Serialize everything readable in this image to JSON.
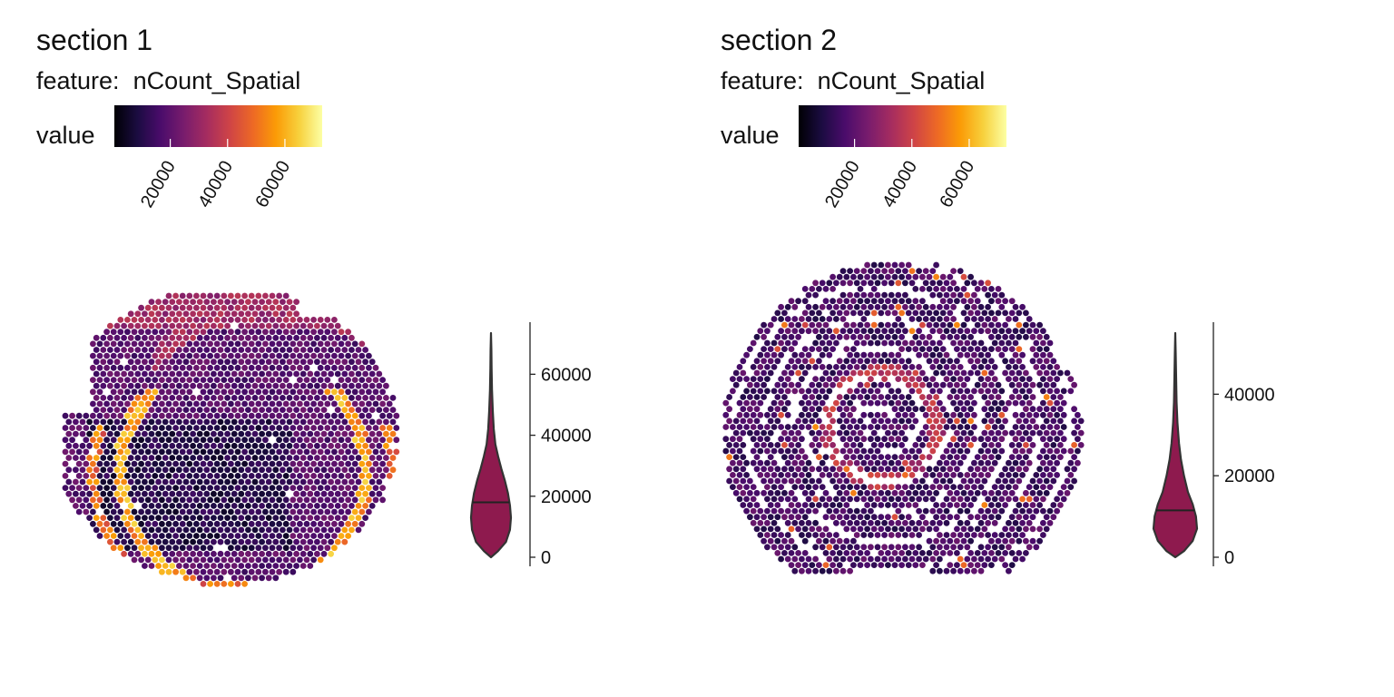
{
  "colors": {
    "violin_fill": "#8e1a4e",
    "violin_stroke": "#333333",
    "colormap": [
      "#000004",
      "#1b0c41",
      "#4a0c6b",
      "#781c6d",
      "#a52c60",
      "#cf4446",
      "#ed6925",
      "#fb9b06",
      "#f7d13d",
      "#fcffa4"
    ]
  },
  "chart_data": [
    {
      "type": "heatmap",
      "title": "section 1",
      "subtitle": "feature:  nCount_Spatial",
      "legend": {
        "label": "value",
        "ticks": [
          20000,
          40000,
          60000
        ],
        "tick_labels": [
          "20000",
          "40000",
          "60000"
        ],
        "range": [
          500,
          73000
        ]
      },
      "violin": {
        "axis_ticks": [
          0,
          20000,
          40000,
          60000
        ],
        "axis_tick_labels": [
          "0",
          "20000",
          "40000",
          "60000"
        ],
        "range": [
          0,
          73500
        ],
        "median": 18000,
        "density": [
          [
            0,
            0.0
          ],
          [
            2000,
            0.35
          ],
          [
            5000,
            0.75
          ],
          [
            9000,
            0.95
          ],
          [
            13000,
            1.0
          ],
          [
            17000,
            0.95
          ],
          [
            21000,
            0.85
          ],
          [
            25000,
            0.7
          ],
          [
            29000,
            0.52
          ],
          [
            33000,
            0.36
          ],
          [
            37000,
            0.22
          ],
          [
            42000,
            0.14
          ],
          [
            48000,
            0.09
          ],
          [
            55000,
            0.05
          ],
          [
            62000,
            0.03
          ],
          [
            68000,
            0.02
          ],
          [
            73500,
            0.0
          ]
        ]
      }
    },
    {
      "type": "heatmap",
      "title": "section 2",
      "subtitle": "feature:  nCount_Spatial",
      "legend": {
        "label": "value",
        "ticks": [
          20000,
          40000,
          60000
        ],
        "tick_labels": [
          "20000",
          "40000",
          "60000"
        ],
        "range": [
          500,
          73000
        ]
      },
      "violin": {
        "axis_ticks": [
          0,
          20000,
          40000
        ],
        "axis_tick_labels": [
          "0",
          "20000",
          "40000"
        ],
        "range": [
          0,
          55000
        ],
        "median": 11500,
        "density": [
          [
            0,
            0.0
          ],
          [
            1500,
            0.4
          ],
          [
            4000,
            0.8
          ],
          [
            7000,
            1.0
          ],
          [
            10000,
            0.95
          ],
          [
            13000,
            0.8
          ],
          [
            16000,
            0.58
          ],
          [
            20000,
            0.4
          ],
          [
            24000,
            0.26
          ],
          [
            28000,
            0.17
          ],
          [
            33000,
            0.1
          ],
          [
            38000,
            0.06
          ],
          [
            44000,
            0.04
          ],
          [
            50000,
            0.02
          ],
          [
            55000,
            0.0
          ]
        ]
      }
    }
  ]
}
